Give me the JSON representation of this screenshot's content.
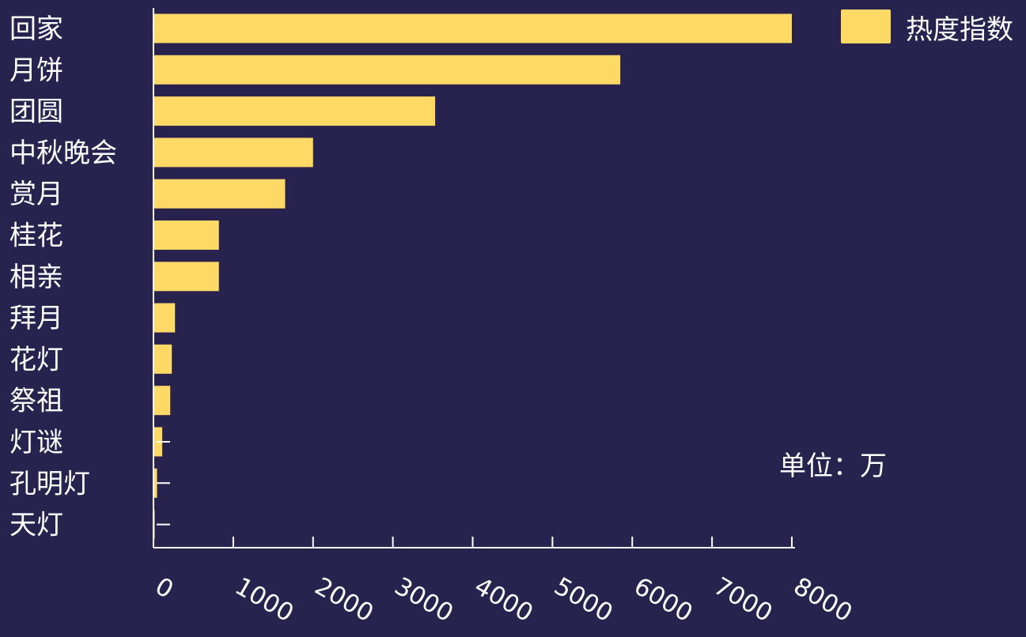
{
  "colors": {
    "background": "#28224f",
    "bar": "#ffd966",
    "text": "#ffffff",
    "axis": "#ffffff"
  },
  "chart_data": {
    "type": "bar",
    "orientation": "horizontal",
    "categories": [
      "回家",
      "月饼",
      "团圆",
      "中秋晚会",
      "赏月",
      "桂花",
      "相亲",
      "拜月",
      "花灯",
      "祭祖",
      "灯谜",
      "孔明灯",
      "天灯"
    ],
    "series": [
      {
        "name": "热度指数",
        "values": [
          8000,
          5850,
          3530,
          2000,
          1650,
          820,
          820,
          270,
          230,
          210,
          110,
          45,
          15
        ]
      }
    ],
    "x_ticks": [
      "0",
      "1000",
      "2000",
      "3000",
      "4000",
      "5000",
      "6000",
      "7000",
      "8000"
    ],
    "xlim": [
      0,
      8000
    ],
    "unit_label": "单位：万",
    "legend_position": "top-right",
    "grid": false
  }
}
